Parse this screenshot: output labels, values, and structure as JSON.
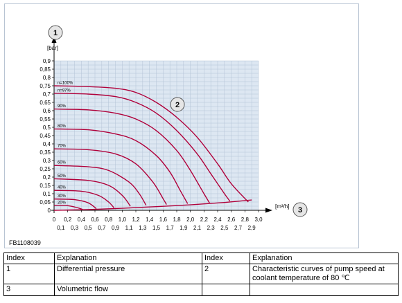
{
  "figure": {
    "code": "FB1108039",
    "callouts": [
      "1",
      "2",
      "3"
    ]
  },
  "chart_data": {
    "type": "line",
    "y_unit": "[bar]",
    "x_unit": "[m³/h]",
    "y_ticks": [
      "0",
      "0,05",
      "0,1",
      "0,15",
      "0,2",
      "0,25",
      "0,3",
      "0,35",
      "0,4",
      "0,45",
      "0,5",
      "0,55",
      "0,6",
      "0,65",
      "0,7",
      "0,75",
      "0,8",
      "0,85",
      "0,9"
    ],
    "x_ticks_top": [
      "0",
      "0,2",
      "0,4",
      "0,6",
      "0,8",
      "1,0",
      "1,2",
      "1,4",
      "1,6",
      "1,8",
      "2,0",
      "2,2",
      "2,4",
      "2,6",
      "2,8",
      "3,0"
    ],
    "x_ticks_bottom": [
      "0,1",
      "0,3",
      "0,5",
      "0,7",
      "0,9",
      "1,1",
      "1,3",
      "1,5",
      "1,7",
      "1,9",
      "2,1",
      "2,3",
      "2,5",
      "2,7",
      "2,9"
    ],
    "ylim": [
      0,
      0.9
    ],
    "xlim": [
      0,
      3.0
    ],
    "grid": true,
    "line_color": "#b0003a",
    "series": [
      {
        "name": "n=100%",
        "points": [
          [
            0,
            0.75
          ],
          [
            0.5,
            0.745
          ],
          [
            0.9,
            0.735
          ],
          [
            1.2,
            0.71
          ],
          [
            1.5,
            0.65
          ],
          [
            1.8,
            0.56
          ],
          [
            2.1,
            0.44
          ],
          [
            2.4,
            0.28
          ],
          [
            2.6,
            0.16
          ],
          [
            2.85,
            0.05
          ]
        ]
      },
      {
        "name": "n=97%",
        "points": [
          [
            0,
            0.705
          ],
          [
            0.5,
            0.7
          ],
          [
            0.9,
            0.685
          ],
          [
            1.2,
            0.65
          ],
          [
            1.5,
            0.585
          ],
          [
            1.8,
            0.48
          ],
          [
            2.1,
            0.34
          ],
          [
            2.3,
            0.22
          ],
          [
            2.5,
            0.1
          ],
          [
            2.58,
            0.055
          ]
        ]
      },
      {
        "name": "90%",
        "points": [
          [
            0,
            0.61
          ],
          [
            0.5,
            0.605
          ],
          [
            0.9,
            0.585
          ],
          [
            1.2,
            0.55
          ],
          [
            1.5,
            0.48
          ],
          [
            1.8,
            0.36
          ],
          [
            2.0,
            0.24
          ],
          [
            2.2,
            0.1
          ],
          [
            2.28,
            0.045
          ]
        ]
      },
      {
        "name": "80%",
        "points": [
          [
            0,
            0.49
          ],
          [
            0.5,
            0.485
          ],
          [
            0.9,
            0.46
          ],
          [
            1.2,
            0.42
          ],
          [
            1.5,
            0.33
          ],
          [
            1.7,
            0.23
          ],
          [
            1.85,
            0.12
          ],
          [
            1.96,
            0.04
          ]
        ]
      },
      {
        "name": "70%",
        "points": [
          [
            0,
            0.37
          ],
          [
            0.5,
            0.365
          ],
          [
            0.9,
            0.34
          ],
          [
            1.2,
            0.28
          ],
          [
            1.45,
            0.17
          ],
          [
            1.6,
            0.07
          ],
          [
            1.65,
            0.035
          ]
        ]
      },
      {
        "name": "60%",
        "points": [
          [
            0,
            0.27
          ],
          [
            0.5,
            0.262
          ],
          [
            0.8,
            0.24
          ],
          [
            1.1,
            0.17
          ],
          [
            1.25,
            0.1
          ],
          [
            1.35,
            0.03
          ]
        ]
      },
      {
        "name": "50%",
        "points": [
          [
            0,
            0.19
          ],
          [
            0.5,
            0.18
          ],
          [
            0.8,
            0.15
          ],
          [
            1.0,
            0.09
          ],
          [
            1.12,
            0.025
          ]
        ]
      },
      {
        "name": "40%",
        "points": [
          [
            0,
            0.12
          ],
          [
            0.4,
            0.115
          ],
          [
            0.65,
            0.09
          ],
          [
            0.8,
            0.05
          ],
          [
            0.88,
            0.015
          ]
        ]
      },
      {
        "name": "30%",
        "points": [
          [
            0,
            0.068
          ],
          [
            0.3,
            0.064
          ],
          [
            0.5,
            0.045
          ],
          [
            0.62,
            0.01
          ]
        ]
      },
      {
        "name": "20%",
        "points": [
          [
            0,
            0.03
          ],
          [
            0.2,
            0.028
          ],
          [
            0.35,
            0.015
          ],
          [
            0.42,
            0.005
          ]
        ]
      }
    ],
    "system_curve": {
      "points": [
        [
          0,
          0
        ],
        [
          0.5,
          0.004
        ],
        [
          1.0,
          0.012
        ],
        [
          1.5,
          0.022
        ],
        [
          2.0,
          0.033
        ],
        [
          2.5,
          0.047
        ],
        [
          2.9,
          0.062
        ]
      ]
    }
  },
  "table": {
    "headers": [
      "Index",
      "Explanation",
      "Index",
      "Explanation"
    ],
    "rows": [
      [
        "1",
        "Differential pressure",
        "2",
        "Characteristic curves of pump speed at coolant temperature of 80 ℃"
      ],
      [
        "3",
        "Volumetric flow",
        "",
        ""
      ]
    ]
  }
}
